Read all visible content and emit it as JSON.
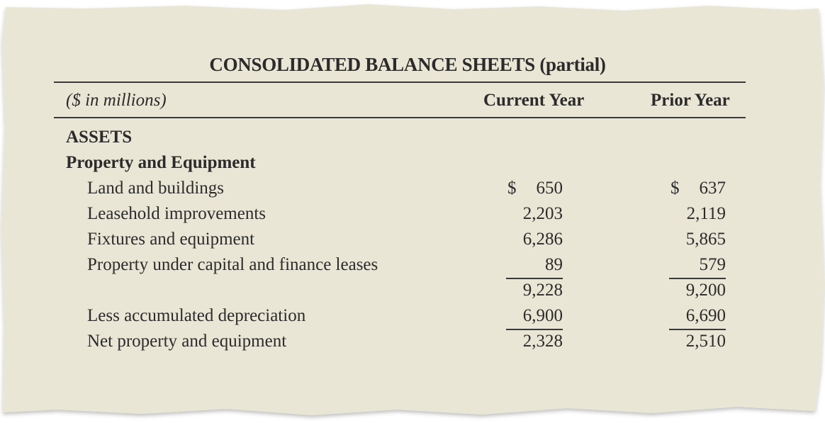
{
  "document": {
    "title": "CONSOLIDATED BALANCE SHEETS (partial)",
    "units_label": "($ in millions)",
    "columns": [
      "Current Year",
      "Prior Year"
    ],
    "section_assets": "ASSETS",
    "section_property": "Property and Equipment",
    "currency_symbol": "$",
    "rows": [
      {
        "label": "Land and buildings",
        "current": "650",
        "prior": "637"
      },
      {
        "label": "Leasehold improvements",
        "current": "2,203",
        "prior": "2,119"
      },
      {
        "label": "Fixtures and equipment",
        "current": "6,286",
        "prior": "5,865"
      },
      {
        "label": "Property under capital and finance leases",
        "current": "89",
        "prior": "579"
      },
      {
        "label": "",
        "current": "9,228",
        "prior": "9,200"
      },
      {
        "label": "Less accumulated depreciation",
        "current": "6,900",
        "prior": "6,690"
      },
      {
        "label": "Net property and equipment",
        "current": "2,328",
        "prior": "2,510"
      }
    ]
  },
  "colors": {
    "paper": "#eae6d6",
    "text": "#2b2b2b",
    "rule": "#3a3a3a"
  }
}
